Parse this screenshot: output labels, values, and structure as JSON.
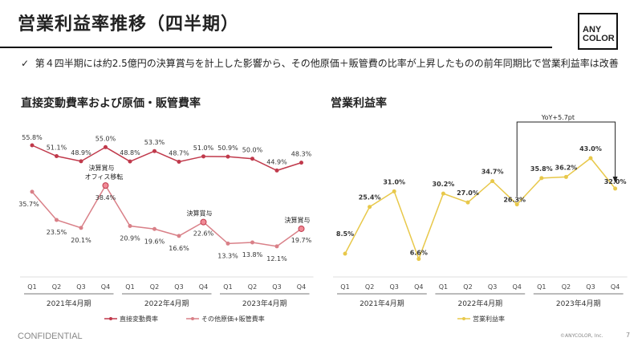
{
  "header": {
    "title": "営業利益率推移（四半期）",
    "logo": "ANY COLOR",
    "bullet_mark": "✓",
    "bullet": "第４四半期には約2.5億円の決算賞与を計上した影響から、その他原価＋販管費の比率が上昇したものの前年同期比で営業利益率は改善"
  },
  "footer": {
    "confidential": "CONFIDENTIAL",
    "copyright": "©ANYCOLOR, Inc.",
    "page": "7"
  },
  "chart_data": [
    {
      "type": "line",
      "title": "直接変動費率および原価・販管費率",
      "categories": [
        "Q1",
        "Q2",
        "Q3",
        "Q4",
        "Q1",
        "Q2",
        "Q3",
        "Q4",
        "Q1",
        "Q2",
        "Q3",
        "Q4"
      ],
      "groups": [
        "2021年4月期",
        "2022年4月期",
        "2023年4月期"
      ],
      "series": [
        {
          "name": "直接変動費率",
          "color": "#c0394b",
          "values": [
            55.8,
            51.1,
            48.9,
            55.0,
            48.8,
            53.3,
            48.7,
            51.0,
            50.9,
            50.0,
            44.9,
            48.3
          ]
        },
        {
          "name": "その他原価+販管費率",
          "color": "#d98088",
          "values": [
            35.7,
            23.5,
            20.1,
            38.4,
            20.9,
            19.6,
            16.6,
            22.6,
            13.3,
            13.8,
            12.1,
            19.7
          ]
        }
      ],
      "annotations": [
        {
          "index": 3,
          "text": [
            "決算賞与",
            "オフィス移転"
          ]
        },
        {
          "index": 7,
          "text": [
            "決算賞与"
          ]
        },
        {
          "index": 11,
          "text": [
            "決算賞与"
          ]
        }
      ],
      "legend": "bottom"
    },
    {
      "type": "line",
      "title": "営業利益率",
      "categories": [
        "Q1",
        "Q2",
        "Q3",
        "Q4",
        "Q1",
        "Q2",
        "Q3",
        "Q4",
        "Q1",
        "Q2",
        "Q3",
        "Q4"
      ],
      "groups": [
        "2021年4月期",
        "2022年4月期",
        "2023年4月期"
      ],
      "series": [
        {
          "name": "営業利益率",
          "color": "#e8c84a",
          "values": [
            8.5,
            25.4,
            31.0,
            6.6,
            30.2,
            27.0,
            34.7,
            26.3,
            35.8,
            36.2,
            43.0,
            32.0
          ]
        }
      ],
      "annotations": [
        {
          "from": 7,
          "to": 11,
          "text": "YoY+5.7pt"
        }
      ],
      "legend": "bottom"
    }
  ]
}
